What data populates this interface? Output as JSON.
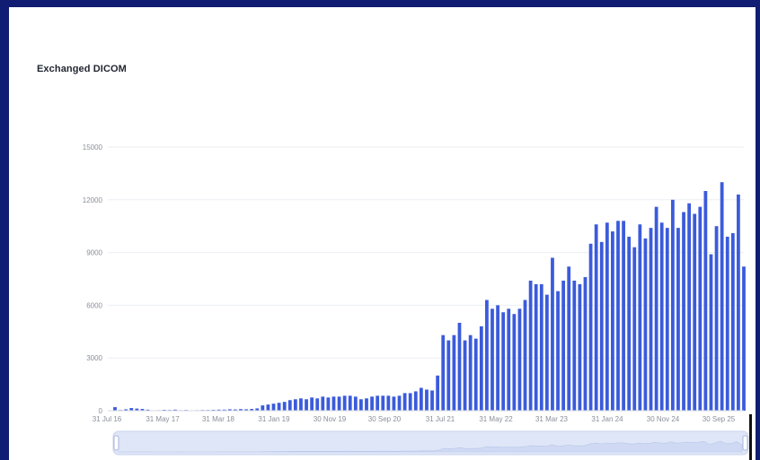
{
  "chart_data": {
    "type": "bar",
    "title": "Exchanged DICOM",
    "xlabel": "",
    "ylabel": "",
    "ylim": [
      0,
      15000
    ],
    "y_ticks": [
      "15000",
      "12000",
      "9000",
      "6000",
      "3000",
      "0"
    ],
    "y_tick_values": [
      15000,
      12000,
      9000,
      6000,
      3000,
      0
    ],
    "x_tick_labels": [
      "31 Jul 16",
      "31 May 17",
      "31 Mar 18",
      "31 Jan 19",
      "30 Nov 19",
      "30 Sep 20",
      "31 Jul 21",
      "31 May 22",
      "31 Mar 23",
      "31 Jan 24",
      "30 Nov 24",
      "30 Sep 25"
    ],
    "grid": true,
    "legend": "none",
    "bar_color": "#3b5bdb",
    "range_selector": true,
    "values": [
      200,
      40,
      80,
      150,
      120,
      100,
      60,
      0,
      30,
      50,
      40,
      60,
      30,
      40,
      20,
      30,
      40,
      40,
      50,
      60,
      60,
      80,
      70,
      90,
      80,
      100,
      130,
      300,
      350,
      400,
      450,
      500,
      600,
      650,
      700,
      650,
      750,
      700,
      800,
      750,
      800,
      800,
      850,
      850,
      800,
      650,
      700,
      800,
      850,
      850,
      850,
      800,
      850,
      1000,
      1000,
      1100,
      1300,
      1200,
      1150,
      2000,
      4300,
      4000,
      4300,
      5000,
      4000,
      4300,
      4100,
      4800,
      6300,
      5800,
      6000,
      5600,
      5800,
      5500,
      5800,
      6300,
      7400,
      7200,
      7200,
      6600,
      8700,
      6800,
      7400,
      8200,
      7400,
      7200,
      7600,
      9500,
      10600,
      9600,
      10700,
      10200,
      10800,
      10800,
      9900,
      9300,
      10600,
      9800,
      10400,
      11600,
      10700,
      10400,
      12000,
      10400,
      11300,
      11800,
      11200,
      11600,
      12500,
      8900,
      10500,
      13000,
      9900,
      10100,
      12300,
      8200
    ]
  }
}
